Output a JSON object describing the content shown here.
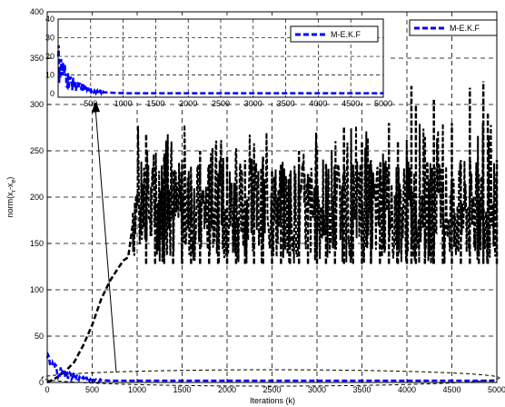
{
  "chart_data": [
    {
      "type": "line",
      "xlabel": "Iterations (k)",
      "ylabel_main": "norm(x",
      "ylabel_sub1": "r",
      "ylabel_mid": "-x",
      "ylabel_sub2": "e",
      "ylabel_end": ")",
      "xlim": [
        0,
        5000
      ],
      "ylim": [
        0,
        400
      ],
      "xticks": [
        0,
        500,
        1000,
        1500,
        2000,
        2500,
        3000,
        3500,
        4000,
        4500,
        5000
      ],
      "yticks": [
        0,
        50,
        100,
        150,
        200,
        250,
        300,
        350,
        400
      ],
      "xtick_labels": [
        "0",
        "500",
        "1000",
        "1500",
        "2000",
        "2500",
        "3000",
        "3500",
        "4000",
        "4500",
        "5000"
      ],
      "ytick_labels": [
        "0",
        "50",
        "100",
        "150",
        "200",
        "250",
        "300",
        "350",
        "400"
      ],
      "grid": true,
      "legend_position": "top-right",
      "series": [
        {
          "name": "M-E.K.F",
          "color": "#0000ff",
          "style": "dashed",
          "x": [
            0,
            50,
            100,
            150,
            200,
            250,
            300,
            400,
            500,
            700,
            1000,
            2000,
            3000,
            4000,
            5000
          ],
          "y": [
            22,
            18,
            15,
            12,
            10,
            8,
            6,
            4,
            3,
            2,
            2,
            2,
            2,
            2,
            2
          ]
        },
        {
          "color": "#000000",
          "style": "dashed",
          "x": [
            0,
            100,
            200,
            300,
            400,
            500,
            600,
            700,
            800,
            850,
            900,
            950,
            1000,
            1100,
            1200,
            1300,
            1400,
            1500,
            1600,
            1700,
            1800,
            1900,
            2000,
            2100,
            2200,
            2300,
            2400,
            2500,
            2600,
            2700,
            2800,
            2900,
            3000,
            3100,
            3200,
            3300,
            3400,
            3500,
            3600,
            3700,
            3800,
            3900,
            4000,
            4050,
            4100,
            4200,
            4300,
            4400,
            4500,
            4600,
            4700,
            4800,
            4850,
            4900,
            5000
          ],
          "y": [
            0,
            5,
            12,
            22,
            40,
            62,
            90,
            110,
            125,
            132,
            135,
            170,
            200,
            268,
            220,
            245,
            230,
            240,
            215,
            250,
            235,
            225,
            245,
            215,
            240,
            220,
            245,
            230,
            235,
            225,
            250,
            225,
            255,
            238,
            230,
            275,
            235,
            260,
            240,
            230,
            280,
            260,
            250,
            320,
            300,
            265,
            305,
            215,
            280,
            240,
            318,
            225,
            325,
            290,
            240
          ],
          "band_low": 128,
          "band_high": 200
        }
      ]
    },
    {
      "type": "line",
      "role": "inset",
      "xlim": [
        0,
        5000
      ],
      "ylim": [
        0,
        40
      ],
      "xticks": [
        500,
        1000,
        1500,
        2000,
        2500,
        3000,
        3500,
        4000,
        4500,
        5000
      ],
      "xtick_labels": [
        "500",
        "1000",
        "1500",
        "2000",
        "2500",
        "3000",
        "3500",
        "4000",
        "4500",
        "5000"
      ],
      "ytick_labels": [
        "0",
        "10",
        "20",
        "30",
        "40"
      ],
      "yticks": [
        0,
        10,
        20,
        30,
        40
      ],
      "grid": true,
      "legend_position": "top-right",
      "series": [
        {
          "name": "M-E.K.F",
          "color": "#0000ff",
          "style": "dashed",
          "x": [
            0,
            50,
            100,
            150,
            200,
            300,
            400,
            500,
            600,
            800,
            1000,
            2000,
            3000,
            4000,
            5000
          ],
          "y": [
            18,
            14,
            11,
            8,
            6,
            4,
            3,
            2,
            1,
            0.5,
            0.2,
            0.2,
            0.2,
            0.2,
            0.2
          ]
        }
      ]
    }
  ]
}
